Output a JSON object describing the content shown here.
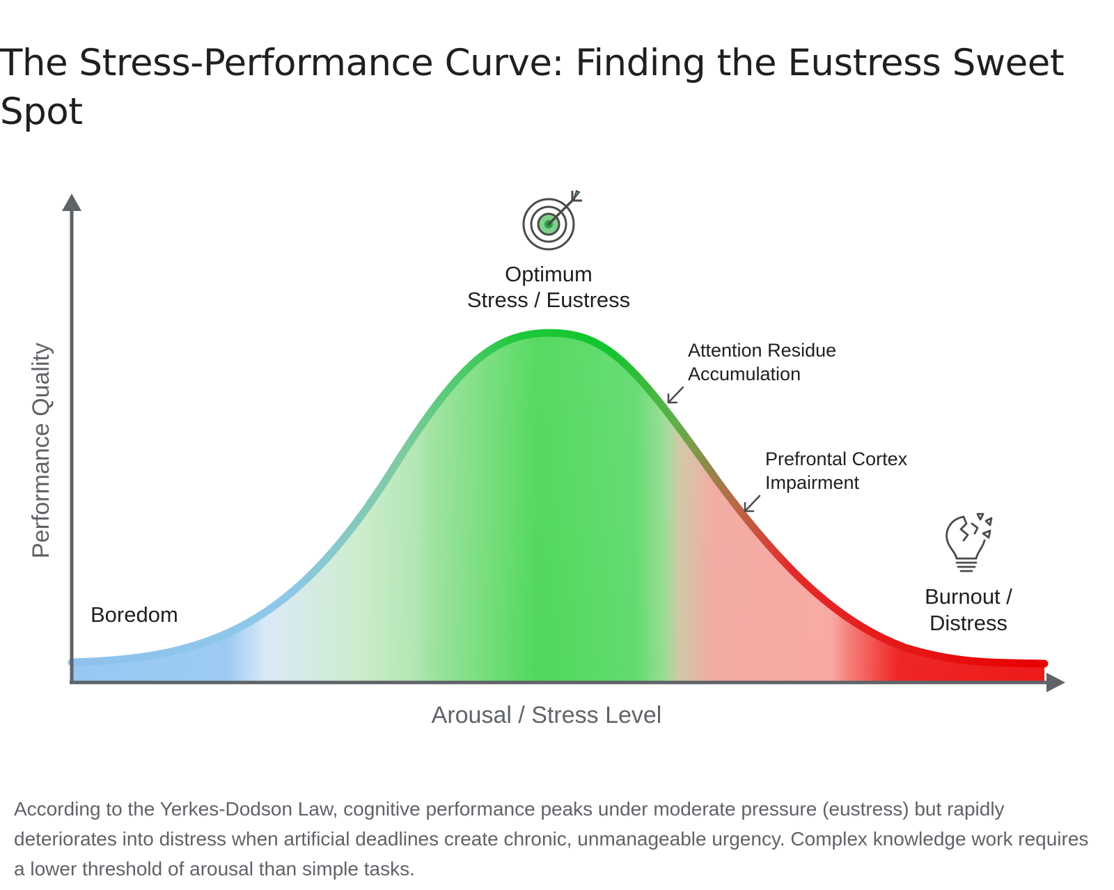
{
  "title": "The Stress-Performance Curve: Finding the Eustress Sweet Spot",
  "diagram": {
    "y_axis_label": "Performance Quality",
    "x_axis_label": "Arousal / Stress Level",
    "zones": {
      "boredom": "Boredom",
      "optimum_line1": "Optimum",
      "optimum_line2": "Stress / Eustress",
      "attention_line1": "Attention Residue",
      "attention_line2": "Accumulation",
      "prefrontal_line1": "Prefrontal Cortex",
      "prefrontal_line2": "Impairment",
      "burnout_line1": "Burnout /",
      "burnout_line2": "Distress"
    },
    "icons": {
      "peak": "target-icon",
      "burnout": "broken-lightbulb-icon"
    },
    "colors": {
      "boredom": "#90c4f0",
      "optimum": "#00c020",
      "impairment": "#f08080",
      "distress": "#e00000",
      "axis": "#5f6368"
    }
  },
  "caption": "According to the Yerkes-Dodson Law, cognitive performance peaks under moderate pressure (eustress) but rapidly deteriorates into distress when artificial deadlines create chronic, unmanageable urgency. Complex knowledge work requires a lower threshold of arousal than simple tasks."
}
